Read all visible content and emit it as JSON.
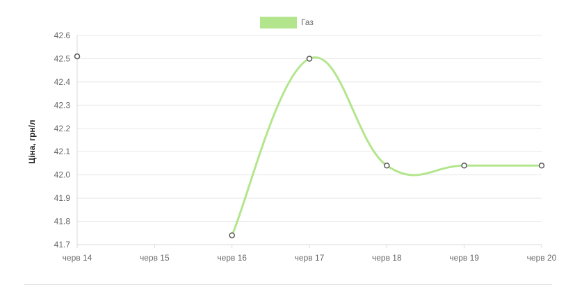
{
  "chart_data": {
    "type": "line",
    "categories": [
      "черв 14",
      "черв 15",
      "черв 16",
      "черв 17",
      "черв 18",
      "черв 19",
      "черв 20"
    ],
    "series": [
      {
        "name": "Газ",
        "color": "#b3e68c",
        "values": [
          42.51,
          null,
          41.74,
          42.5,
          42.04,
          42.04,
          42.04
        ]
      }
    ],
    "ylabel": "Ціна, грн/л",
    "ylim": [
      41.7,
      42.6
    ],
    "yticks": [
      "42.6",
      "42.5",
      "42.4",
      "42.3",
      "42.2",
      "42.1",
      "42.0",
      "41.9",
      "41.8",
      "41.7"
    ],
    "grid": true,
    "legend": "top-center",
    "smooth": true
  }
}
